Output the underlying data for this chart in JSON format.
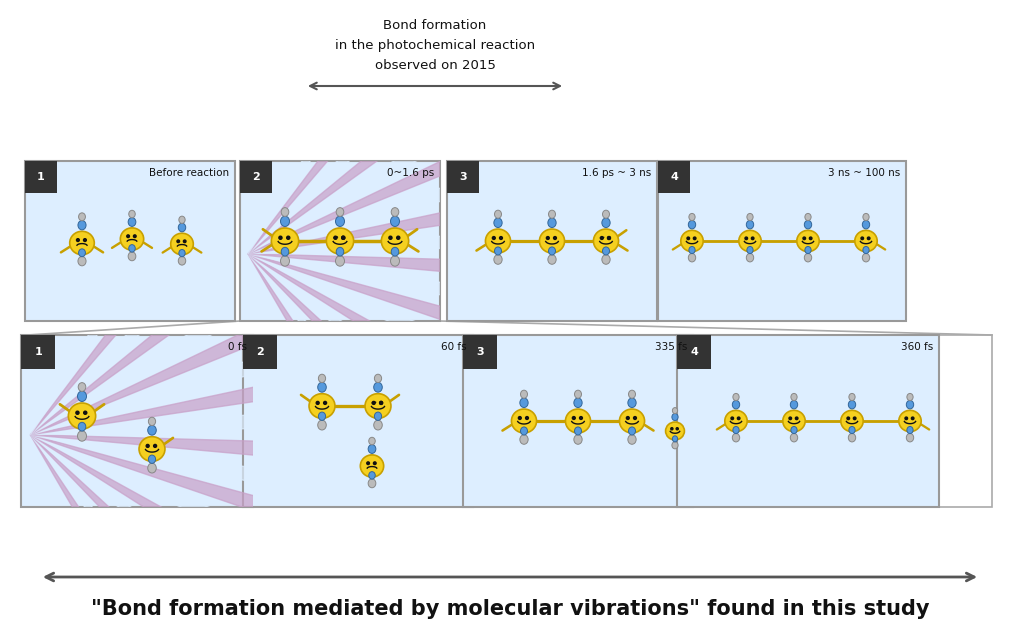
{
  "bg_color": "#ffffff",
  "panel_bg": "#ddeeff",
  "panel_bg_light": "#e8f4ff",
  "panel_border": "#999999",
  "yellow_color": "#f5d020",
  "yellow_edge": "#c8a000",
  "blue_color": "#5599dd",
  "gray_color": "#bbbbbb",
  "purple_color": "#c8a0c8",
  "purple_fill": "#d4b8d4",
  "top_title_lines": [
    "Bond formation",
    "in the photochemical reaction",
    "observed on 2015"
  ],
  "top_labels": [
    "Before reaction",
    "0~1.6 ps",
    "1.6 ps ~ 3 ns",
    "3 ns ~ 100 ns"
  ],
  "bottom_labels": [
    "0 fs",
    "60 fs",
    "335 fs",
    "360 fs"
  ],
  "bottom_text": "\"Bond formation mediated by molecular vibrations\" found in this study",
  "arrow_color": "#666666",
  "corner_bg": "#333333",
  "corner_text_color": "#ffffff",
  "connector_color": "#aaaaaa"
}
